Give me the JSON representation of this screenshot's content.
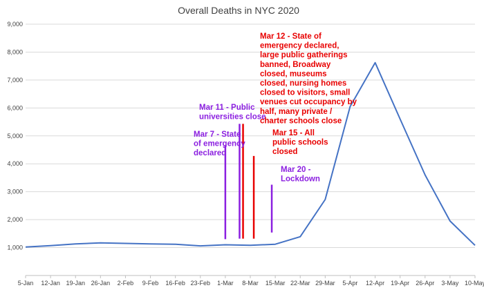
{
  "chart_data": {
    "type": "line",
    "title": "Overall Deaths in NYC 2020",
    "xlabel": "",
    "ylabel": "",
    "x": [
      "5-Jan",
      "12-Jan",
      "19-Jan",
      "26-Jan",
      "2-Feb",
      "9-Feb",
      "16-Feb",
      "23-Feb",
      "1-Mar",
      "8-Mar",
      "15-Mar",
      "22-Mar",
      "29-Mar",
      "5-Apr",
      "12-Apr",
      "19-Apr",
      "26-Apr",
      "3-May",
      "10-May"
    ],
    "y_ticks": [
      "1,000",
      "2,000",
      "3,000",
      "4,000",
      "5,000",
      "6,000",
      "7,000",
      "8,000",
      "9,000"
    ],
    "ylim": [
      0,
      9000
    ],
    "grid": true,
    "legend": "none",
    "series": [
      {
        "color": "#4472c4",
        "values": [
          1020,
          1070,
          1130,
          1170,
          1150,
          1130,
          1120,
          1060,
          1100,
          1080,
          1120,
          1390,
          2720,
          6050,
          7620,
          5600,
          3600,
          1950,
          1080
        ]
      }
    ],
    "annotations": [
      {
        "id": "mar7",
        "text": [
          "Mar 7 - State",
          "of emergency",
          "declared"
        ],
        "color": "#8b1fe0",
        "x": 8.0,
        "y0": 1300,
        "y1": 4650
      },
      {
        "id": "mar11",
        "text": [
          "Mar 11 - Public",
          "universities close"
        ],
        "color": "#8b1fe0",
        "x": 8.57,
        "y0": 1320,
        "y1": 5430
      },
      {
        "id": "mar12",
        "text": [
          "Mar 12 - State of",
          "emergency declared,",
          "large public gatherings",
          "banned, Broadway",
          "closed, museums",
          "closed, nursing homes",
          "closed to visitors, small",
          "venues cut occupancy by",
          "half, many private /",
          "charter schools close"
        ],
        "color": "#e80000",
        "x": 8.71,
        "y0": 1320,
        "y1": 5430
      },
      {
        "id": "mar15",
        "text": [
          "Mar 15 - All",
          "public schools",
          "closed"
        ],
        "color": "#e80000",
        "x": 9.14,
        "y0": 1320,
        "y1": 4280
      },
      {
        "id": "mar20",
        "text": [
          "Mar 20 -",
          "Lockdown"
        ],
        "color": "#8b1fe0",
        "x": 9.86,
        "y0": 1540,
        "y1": 3250
      }
    ]
  }
}
